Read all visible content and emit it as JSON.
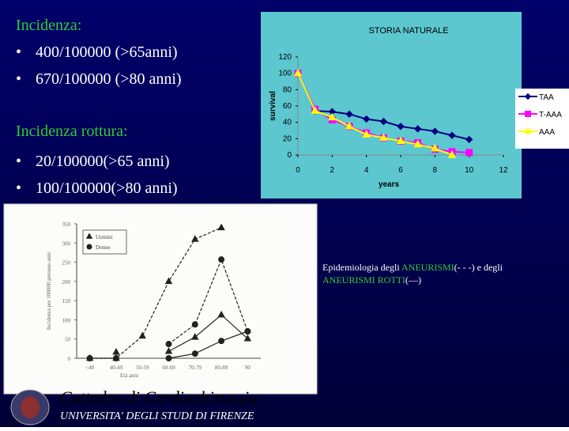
{
  "slide": {
    "incidence_title": "Incidenza:",
    "incidence_items": [
      "400/100000 (>65anni)",
      "670/100000 (>80 anni)"
    ],
    "rupture_title": "Incidenza rottura:",
    "rupture_items": [
      "20/100000(>65 anni)",
      "100/100000(>80 anni)"
    ],
    "caption": {
      "line1": [
        "Epidemiologia degli ",
        "ANEURISMI",
        "(- - -) e degli"
      ],
      "line2": [
        "ANEURISMI ROTTI",
        "(—)"
      ]
    },
    "footer": {
      "department": "Cattedra di Cardiochirurgia",
      "university": "UNIVERSITA' DEGLI STUDI DI FIRENZE"
    }
  },
  "chart_data": [
    {
      "type": "line",
      "title": "STORIA NATURALE",
      "x_label": "years",
      "y_label": "survival",
      "x": [
        0,
        1,
        2,
        3,
        4,
        5,
        6,
        7,
        8,
        9,
        10
      ],
      "xlim": [
        0,
        12
      ],
      "xticks": [
        0,
        2,
        4,
        6,
        8,
        10,
        12
      ],
      "ylim": [
        0,
        120
      ],
      "yticks": [
        0,
        20,
        40,
        60,
        80,
        100,
        120
      ],
      "legend": "right",
      "series": [
        {
          "name": "TAA",
          "color": "#000080",
          "marker": "diamond",
          "values": [
            100,
            54,
            53,
            50,
            44,
            41,
            35,
            32,
            29,
            24,
            19
          ]
        },
        {
          "name": "T-AAA",
          "color": "#ff00ff",
          "marker": "square",
          "values": [
            100,
            56,
            43,
            35,
            27,
            21,
            17,
            15,
            7,
            4,
            3
          ]
        },
        {
          "name": "AAA",
          "color": "#ffff00",
          "marker": "triangle",
          "values": [
            100,
            54,
            46,
            35,
            25,
            21,
            17,
            13,
            8,
            0,
            null
          ]
        }
      ]
    },
    {
      "type": "line",
      "x_label": "Età anni",
      "y_label": "Incidenza per 100000 persone-anni",
      "categories": [
        "<40",
        "40-49",
        "50-59",
        "60-69",
        "70-79",
        "80-89",
        "90"
      ],
      "ylim": [
        0,
        350
      ],
      "yticks": [
        0,
        50,
        100,
        150,
        200,
        250,
        300,
        350
      ],
      "legend": [
        {
          "name": "Uomini",
          "marker": "triangle"
        },
        {
          "name": "Donne",
          "marker": "circle"
        }
      ],
      "series": [
        {
          "color": "#222222",
          "marker": "triangle",
          "line_style": "dashed",
          "values": [
            0,
            0,
            58,
            200,
            310,
            340,
            null
          ]
        },
        {
          "color": "#222222",
          "marker": "triangle",
          "line_style": "solid",
          "values": [
            null,
            16,
            null,
            18,
            55,
            113,
            51
          ]
        },
        {
          "color": "#222222",
          "marker": "circle",
          "line_style": "dashed",
          "values": [
            null,
            null,
            null,
            37,
            88,
            257,
            70
          ]
        },
        {
          "color": "#222222",
          "marker": "circle",
          "line_style": "solid",
          "values": [
            0,
            0,
            null,
            0,
            12,
            45,
            70
          ]
        }
      ]
    }
  ]
}
